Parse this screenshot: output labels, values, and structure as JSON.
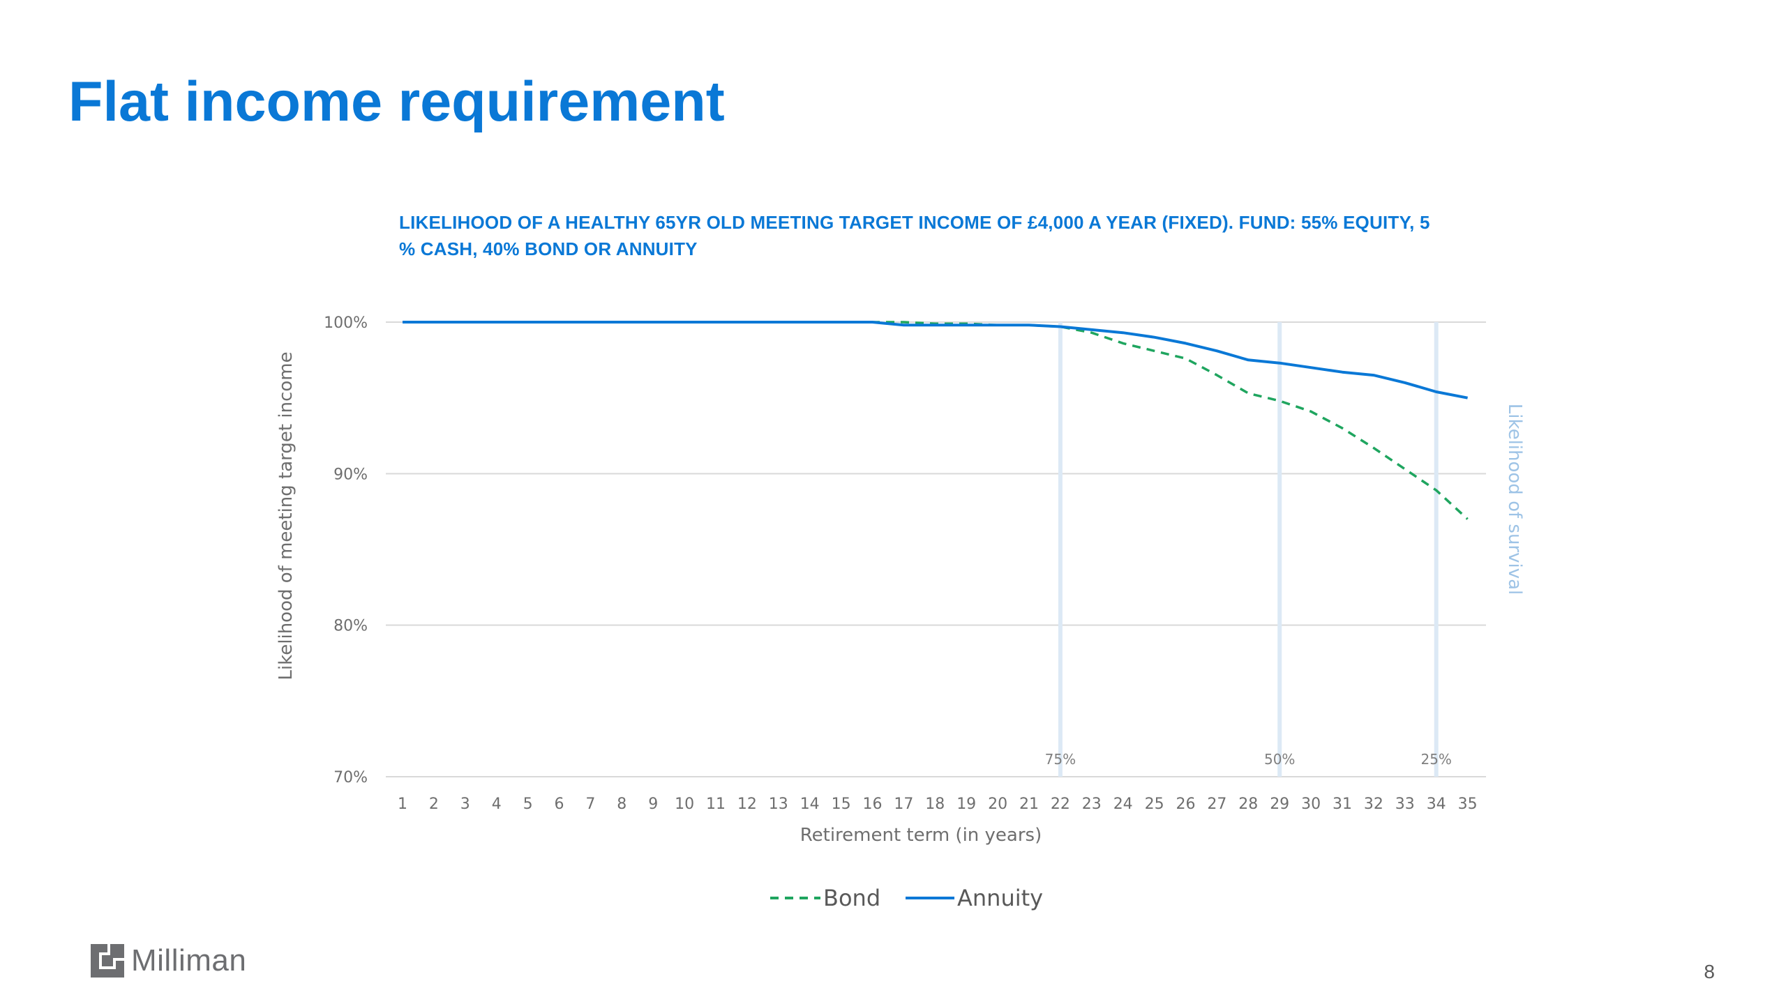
{
  "slide": {
    "title": "Flat income requirement",
    "page_number": "8",
    "logo_text": "Milliman"
  },
  "colors": {
    "title": "#0a78d6",
    "bond": "#1fa55f",
    "annuity": "#0a78d6",
    "survival_band": "#dce9f5",
    "grid": "#d9d9d9"
  },
  "chart_data": {
    "type": "line",
    "title": "LIKELIHOOD OF A HEALTHY 65YR OLD MEETING TARGET INCOME OF £4,000 A YEAR (FIXED). FUND: 55% EQUITY, 5 % CASH, 40% BOND OR ANNUITY",
    "xlabel": "Retirement term (in years)",
    "ylabel": "Likelihood of meeting target income",
    "y2label": "Likelihood of survival",
    "categories": [
      1,
      2,
      3,
      4,
      5,
      6,
      7,
      8,
      9,
      10,
      11,
      12,
      13,
      14,
      15,
      16,
      17,
      18,
      19,
      20,
      21,
      22,
      23,
      24,
      25,
      26,
      27,
      28,
      29,
      30,
      31,
      32,
      33,
      34,
      35
    ],
    "ylim": [
      70,
      100
    ],
    "yticks": [
      "70%",
      "80%",
      "90%",
      "100%"
    ],
    "ytick_values": [
      70,
      80,
      90,
      100
    ],
    "grid": true,
    "legend_position": "bottom",
    "series": [
      {
        "name": "Bond",
        "style": "dashed",
        "values": [
          100,
          100,
          100,
          100,
          100,
          100,
          100,
          100,
          100,
          100,
          100,
          100,
          100,
          100,
          100,
          100,
          100,
          99.9,
          99.9,
          99.8,
          99.8,
          99.7,
          99.3,
          98.6,
          98.1,
          97.6,
          96.5,
          95.3,
          94.8,
          94.1,
          93.0,
          91.7,
          90.3,
          88.9,
          87.0
        ]
      },
      {
        "name": "Annuity",
        "style": "solid",
        "values": [
          100,
          100,
          100,
          100,
          100,
          100,
          100,
          100,
          100,
          100,
          100,
          100,
          100,
          100,
          100,
          100,
          99.8,
          99.8,
          99.8,
          99.8,
          99.8,
          99.7,
          99.5,
          99.3,
          99.0,
          98.6,
          98.1,
          97.5,
          97.3,
          97.0,
          96.7,
          96.5,
          96.0,
          95.4,
          95.0
        ]
      }
    ],
    "survival_markers": [
      {
        "label": "75%",
        "x": 22
      },
      {
        "label": "50%",
        "x": 29
      },
      {
        "label": "25%",
        "x": 34
      }
    ]
  }
}
